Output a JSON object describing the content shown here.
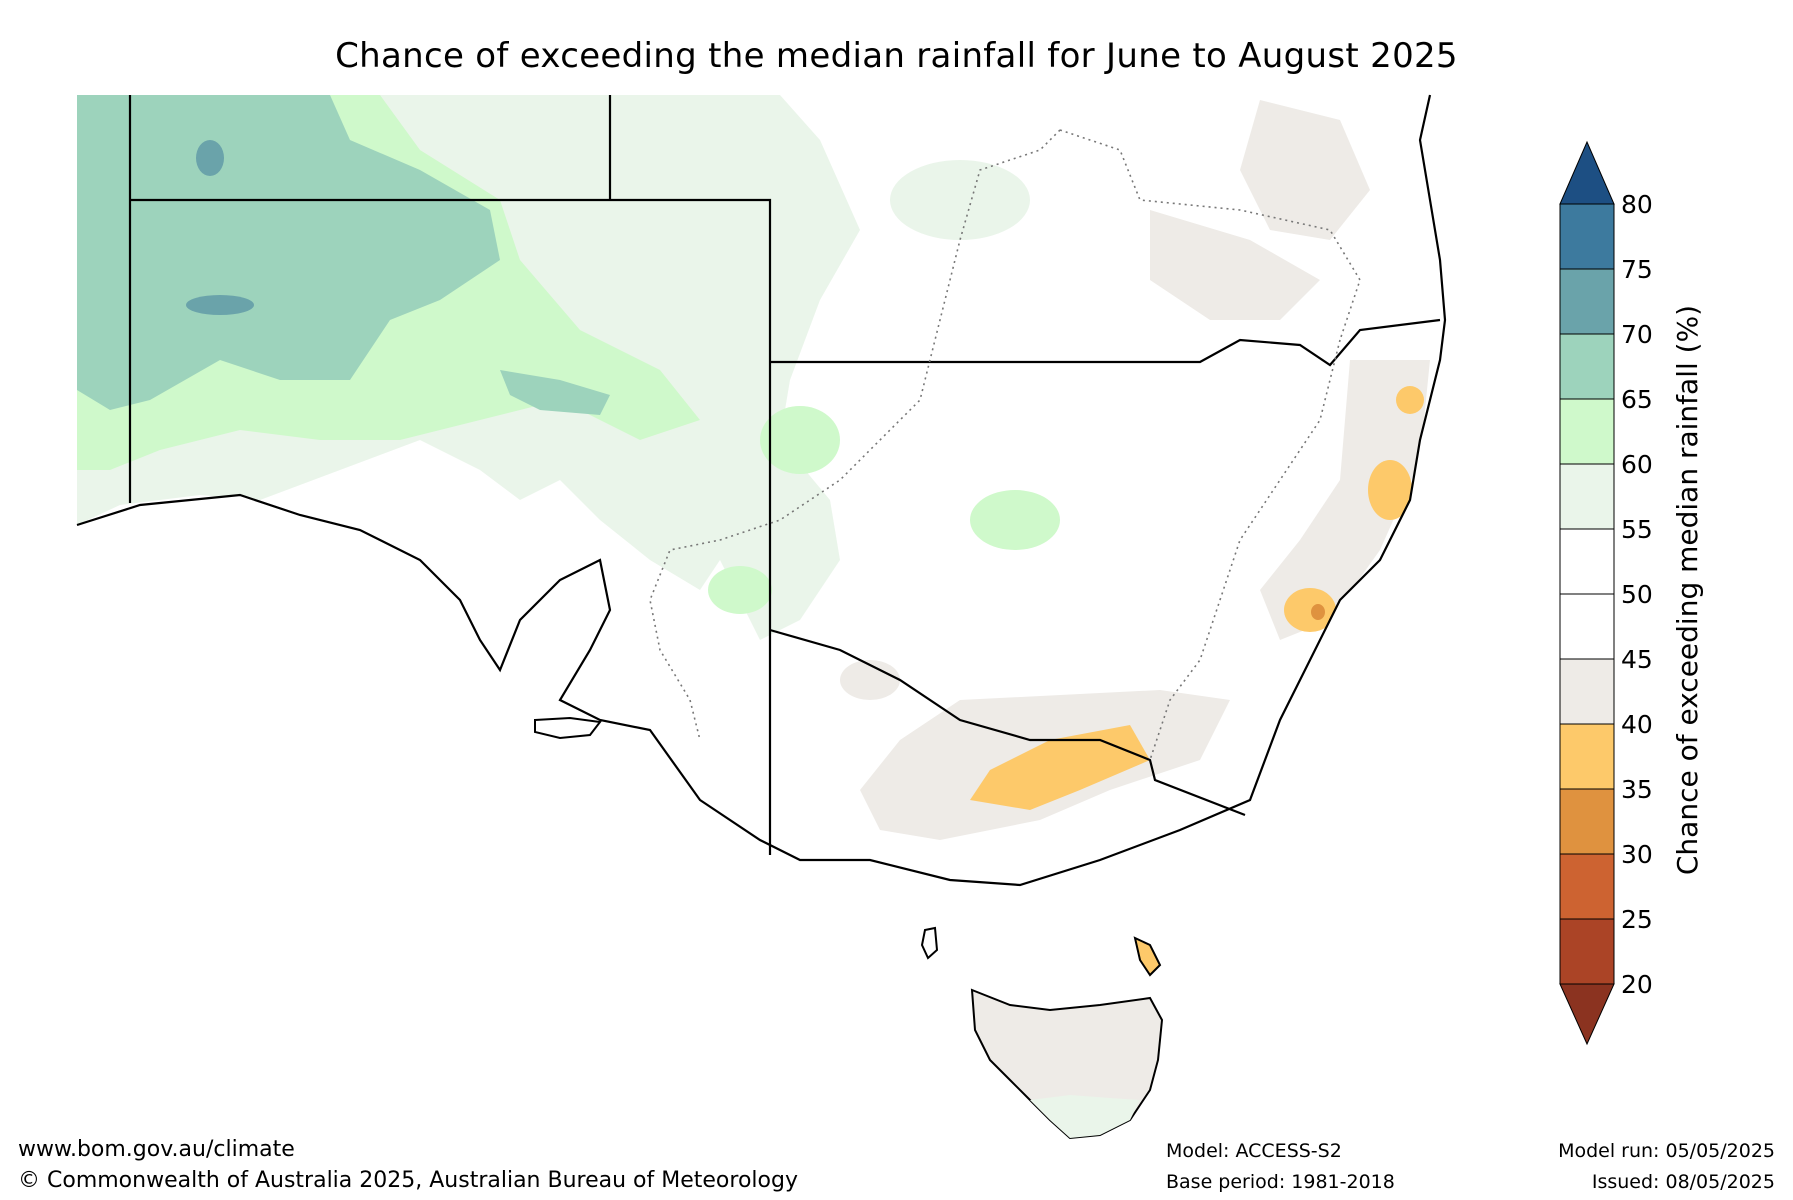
{
  "title": "Chance of exceeding the median rainfall for June to August 2025",
  "colorbar": {
    "label": "Chance of exceeding median rainfall (%)",
    "ticks": [
      "80",
      "75",
      "70",
      "65",
      "60",
      "55",
      "50",
      "45",
      "40",
      "35",
      "30",
      "25",
      "20"
    ],
    "bands": [
      {
        "range": "75-80",
        "color": "#3d7a9e"
      },
      {
        "range": "70-75",
        "color": "#6aa3aa"
      },
      {
        "range": "65-70",
        "color": "#9dd3bc"
      },
      {
        "range": "60-65",
        "color": "#cff9cb"
      },
      {
        "range": "55-60",
        "color": "#eaf5ea"
      },
      {
        "range": "50-55",
        "color": "#ffffff"
      },
      {
        "range": "45-50",
        "color": "#ffffff"
      },
      {
        "range": "40-45",
        "color": "#eeebe7"
      },
      {
        "range": "35-40",
        "color": "#fdc96a"
      },
      {
        "range": "30-35",
        "color": "#df923f"
      },
      {
        "range": "25-30",
        "color": "#cd6331"
      },
      {
        "range": "20-25",
        "color": "#ab4426"
      }
    ],
    "over_color": "#1d4f83",
    "under_color": "#8b3320"
  },
  "footer": {
    "website": "www.bom.gov.au/climate",
    "copyright": "© Commonwealth of Australia 2025, Australian Bureau of Meteorology",
    "model": "Model: ACCESS-S2",
    "base_period": "Base period: 1981-2018",
    "model_run": "Model run: 05/05/2025",
    "issued": "Issued: 08/05/2025"
  }
}
